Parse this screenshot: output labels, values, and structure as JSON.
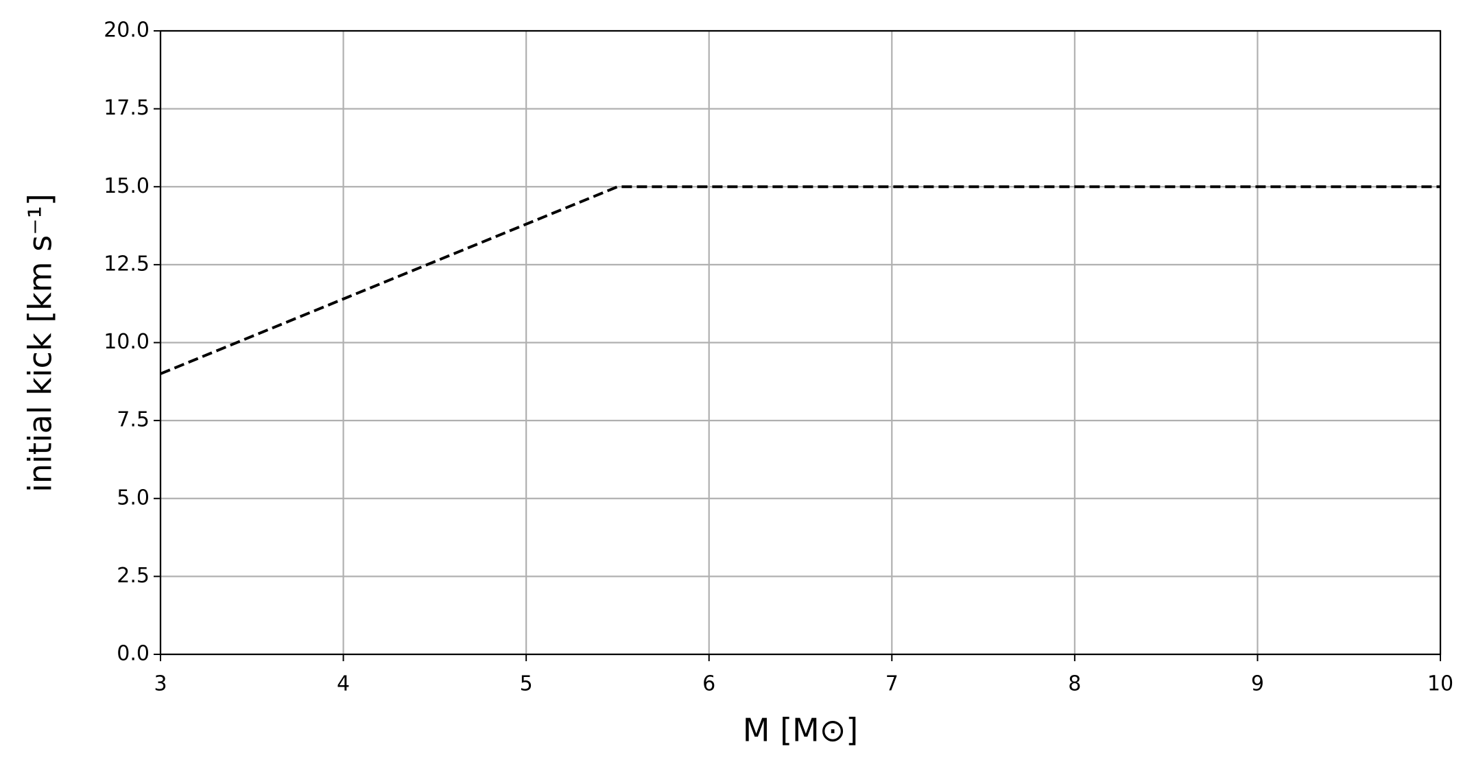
{
  "chart_data": {
    "type": "line",
    "x_label": "M  [M⊙]",
    "y_label": "initial kick  [km s⁻¹]",
    "x": [
      3,
      5.5,
      10
    ],
    "series": [
      {
        "color": "#000000",
        "values": [
          9,
          15,
          15
        ]
      }
    ],
    "xlim": [
      3,
      10
    ],
    "xticks": [
      3,
      4,
      5,
      6,
      7,
      8,
      9,
      10
    ],
    "ylim": [
      0,
      20
    ],
    "yticks": [
      {
        "value": 0,
        "label": "0.0"
      },
      2.5,
      {
        "value": 5,
        "label": "5.0"
      },
      7.5,
      {
        "value": 10,
        "label": "10.0"
      },
      12.5,
      {
        "value": 15,
        "label": "15.0"
      },
      17.5,
      {
        "value": 20,
        "label": "20.0"
      }
    ],
    "grid": true,
    "dashed": true
  }
}
